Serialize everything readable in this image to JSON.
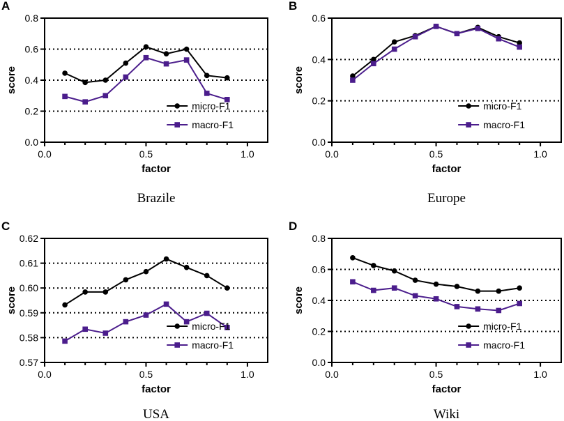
{
  "chart_data": [
    {
      "panel": "A",
      "caption": "Brazile",
      "type": "line",
      "xlabel": "factor",
      "ylabel": "score",
      "xlim": [
        0.0,
        1.1
      ],
      "ylim": [
        0.0,
        0.8
      ],
      "xticks": [
        "0.0",
        "0.5",
        "1.0"
      ],
      "yticks": [
        "0.0",
        "0.2",
        "0.4",
        "0.6",
        "0.8"
      ],
      "gridlines": [
        0.2,
        0.4,
        0.6
      ],
      "legend_position": "lower-right",
      "x": [
        0.1,
        0.2,
        0.3,
        0.4,
        0.5,
        0.6,
        0.7,
        0.8,
        0.9
      ],
      "series": [
        {
          "name": "micro-F1",
          "color": "#000000",
          "marker": "circle",
          "values": [
            0.445,
            0.385,
            0.4,
            0.51,
            0.615,
            0.57,
            0.6,
            0.43,
            0.415
          ]
        },
        {
          "name": "macro-F1",
          "color": "#4b1d8c",
          "marker": "square",
          "values": [
            0.295,
            0.26,
            0.3,
            0.42,
            0.545,
            0.505,
            0.53,
            0.315,
            0.275
          ]
        }
      ]
    },
    {
      "panel": "B",
      "caption": "Europe",
      "type": "line",
      "xlabel": "factor",
      "ylabel": "score",
      "xlim": [
        0.0,
        1.1
      ],
      "ylim": [
        0.0,
        0.6
      ],
      "xticks": [
        "0.0",
        "0.5",
        "1.0"
      ],
      "yticks": [
        "0.0",
        "0.2",
        "0.4",
        "0.6"
      ],
      "gridlines": [
        0.2,
        0.4
      ],
      "legend_position": "lower-right",
      "x": [
        0.1,
        0.2,
        0.3,
        0.4,
        0.5,
        0.6,
        0.7,
        0.8,
        0.9
      ],
      "series": [
        {
          "name": "micro-F1",
          "color": "#000000",
          "marker": "circle",
          "values": [
            0.32,
            0.4,
            0.485,
            0.515,
            0.56,
            0.525,
            0.555,
            0.51,
            0.48
          ]
        },
        {
          "name": "macro-F1",
          "color": "#4b1d8c",
          "marker": "square",
          "values": [
            0.3,
            0.38,
            0.45,
            0.51,
            0.56,
            0.525,
            0.55,
            0.5,
            0.46
          ]
        }
      ]
    },
    {
      "panel": "C",
      "caption": "USA",
      "type": "line",
      "xlabel": "factor",
      "ylabel": "score",
      "xlim": [
        0.0,
        1.1
      ],
      "ylim": [
        0.57,
        0.62
      ],
      "xticks": [
        "0.0",
        "0.5",
        "1.0"
      ],
      "yticks": [
        "0.57",
        "0.58",
        "0.59",
        "0.60",
        "0.61",
        "0.62"
      ],
      "gridlines": [
        0.58,
        0.59,
        0.6,
        0.61
      ],
      "legend_position": "lower-right",
      "x": [
        0.1,
        0.2,
        0.3,
        0.4,
        0.5,
        0.6,
        0.7,
        0.8,
        0.9
      ],
      "series": [
        {
          "name": "micro-F1",
          "color": "#000000",
          "marker": "circle",
          "values": [
            0.5932,
            0.5984,
            0.5984,
            0.6033,
            0.6066,
            0.6117,
            0.6083,
            0.605,
            0.6
          ]
        },
        {
          "name": "macro-F1",
          "color": "#4b1d8c",
          "marker": "square",
          "values": [
            0.5786,
            0.5834,
            0.5818,
            0.5864,
            0.5891,
            0.5935,
            0.5864,
            0.5898,
            0.5841
          ]
        }
      ]
    },
    {
      "panel": "D",
      "caption": "Wiki",
      "type": "line",
      "xlabel": "factor",
      "ylabel": "score",
      "xlim": [
        0.0,
        1.1
      ],
      "ylim": [
        0.0,
        0.8
      ],
      "xticks": [
        "0.0",
        "0.5",
        "1.0"
      ],
      "yticks": [
        "0.0",
        "0.2",
        "0.4",
        "0.6",
        "0.8"
      ],
      "gridlines": [
        0.2,
        0.4,
        0.6
      ],
      "legend_position": "lower-right",
      "x": [
        0.1,
        0.2,
        0.3,
        0.4,
        0.5,
        0.6,
        0.7,
        0.8,
        0.9
      ],
      "series": [
        {
          "name": "micro-F1",
          "color": "#000000",
          "marker": "circle",
          "values": [
            0.675,
            0.625,
            0.59,
            0.53,
            0.505,
            0.49,
            0.46,
            0.46,
            0.48
          ]
        },
        {
          "name": "macro-F1",
          "color": "#4b1d8c",
          "marker": "square",
          "values": [
            0.52,
            0.465,
            0.48,
            0.43,
            0.41,
            0.36,
            0.345,
            0.335,
            0.38
          ]
        }
      ]
    }
  ]
}
